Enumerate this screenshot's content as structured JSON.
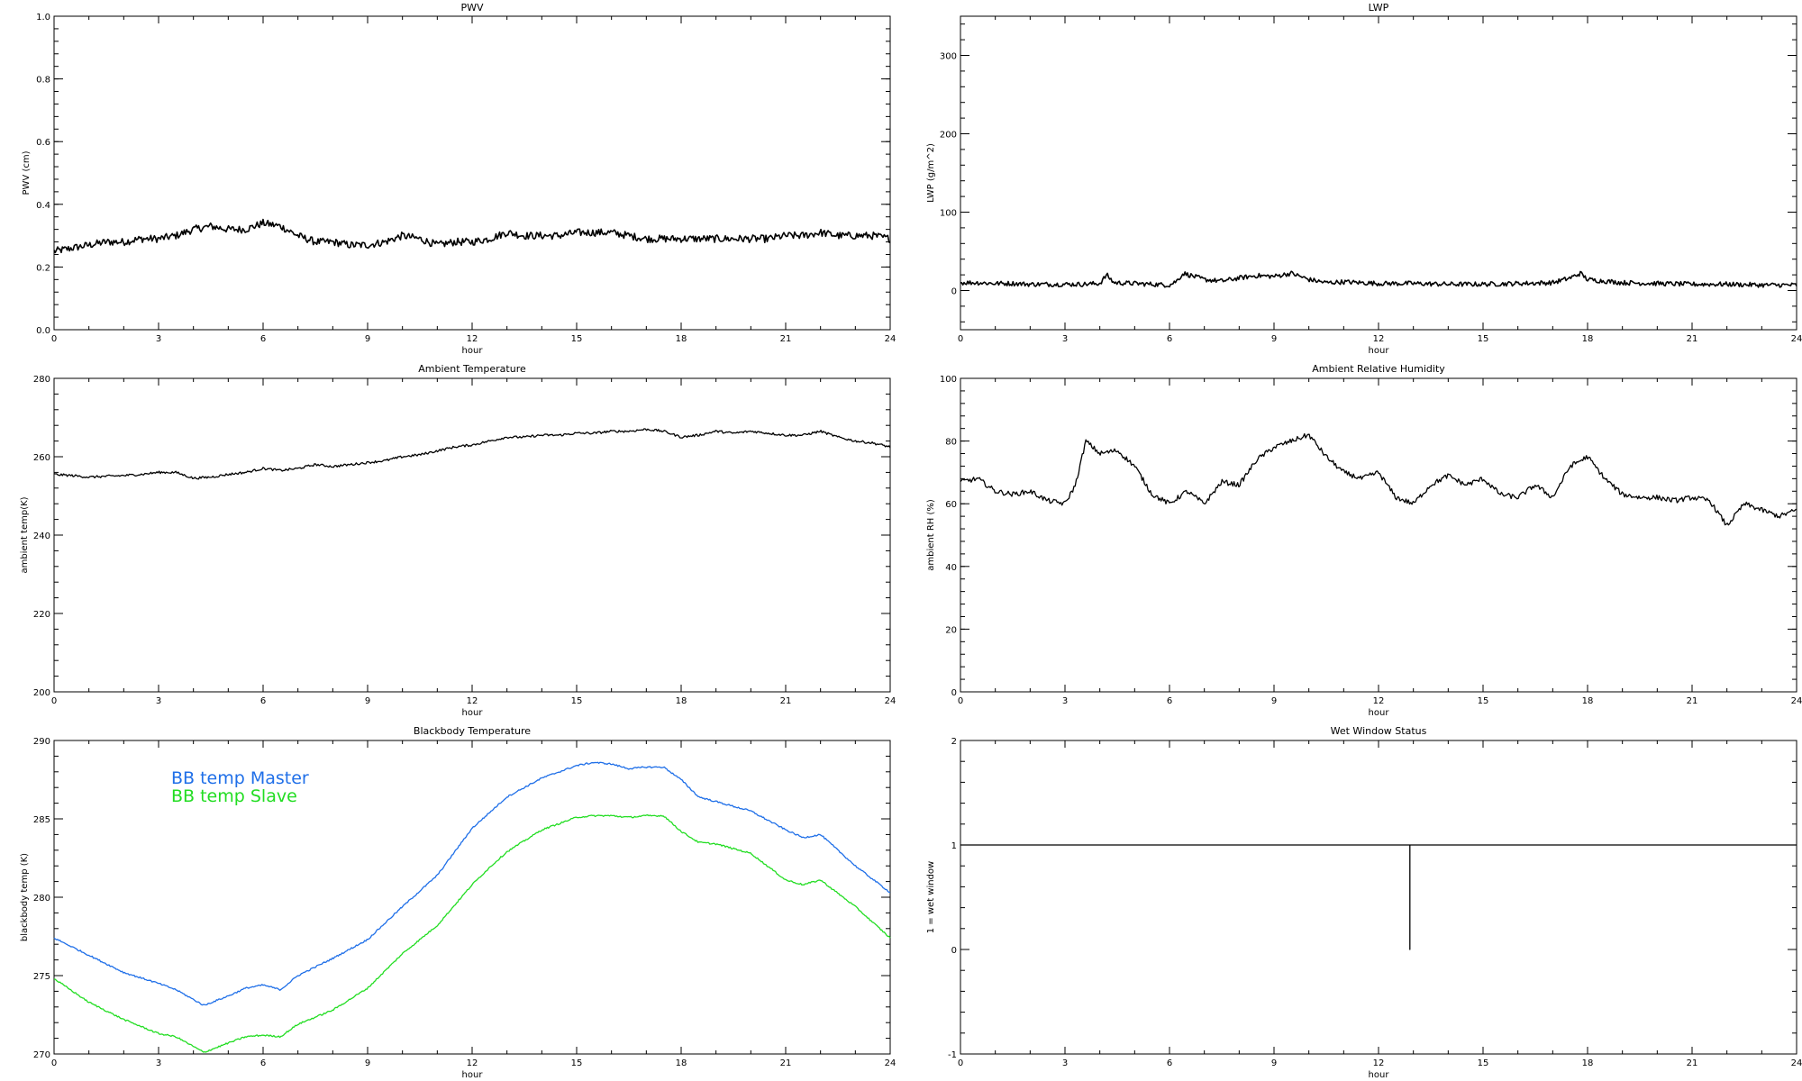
{
  "chart_data": [
    {
      "id": "pwv",
      "type": "line",
      "title": "PWV",
      "xlabel": "hour",
      "ylabel": "PWV (cm)",
      "xlim": [
        0,
        24
      ],
      "ylim": [
        0,
        1.0
      ],
      "xticks": [
        "0",
        "3",
        "6",
        "9",
        "12",
        "15",
        "18",
        "21",
        "24"
      ],
      "yticks": [
        "0.0",
        "0.2",
        "0.4",
        "0.6",
        "0.8",
        "1.0"
      ],
      "legend": [],
      "series": [
        {
          "color": "#000000",
          "noise": 0.012,
          "x": [
            0,
            0.5,
            1,
            1.5,
            2,
            2.5,
            3,
            3.5,
            4,
            4.5,
            5,
            5.5,
            6,
            6.5,
            7,
            7.5,
            8,
            8.5,
            9,
            9.5,
            10,
            10.5,
            11,
            11.5,
            12,
            12.5,
            13,
            13.5,
            14,
            14.5,
            15,
            15.5,
            16,
            16.5,
            17,
            17.5,
            18,
            18.5,
            19,
            19.5,
            20,
            20.5,
            21,
            21.5,
            22,
            22.5,
            23,
            23.5,
            24
          ],
          "y": [
            0.25,
            0.26,
            0.27,
            0.28,
            0.28,
            0.29,
            0.29,
            0.3,
            0.32,
            0.33,
            0.32,
            0.32,
            0.34,
            0.33,
            0.3,
            0.28,
            0.28,
            0.27,
            0.27,
            0.28,
            0.3,
            0.29,
            0.27,
            0.28,
            0.28,
            0.29,
            0.31,
            0.3,
            0.3,
            0.3,
            0.31,
            0.31,
            0.31,
            0.3,
            0.29,
            0.29,
            0.29,
            0.29,
            0.29,
            0.29,
            0.29,
            0.29,
            0.3,
            0.3,
            0.31,
            0.3,
            0.3,
            0.3,
            0.29
          ]
        }
      ]
    },
    {
      "id": "lwp",
      "type": "line",
      "title": "LWP",
      "xlabel": "hour",
      "ylabel": "LWP (g/m^2)",
      "xlim": [
        0,
        24
      ],
      "ylim": [
        -50,
        350
      ],
      "xticks": [
        "0",
        "3",
        "6",
        "9",
        "12",
        "15",
        "18",
        "21",
        "24"
      ],
      "yticks": [
        "0",
        "100",
        "200",
        "300"
      ],
      "yticks_values": [
        0,
        100,
        200,
        300
      ],
      "legend": [],
      "series": [
        {
          "color": "#000000",
          "noise": 3,
          "x": [
            0,
            0.5,
            1,
            1.5,
            2,
            2.5,
            3,
            3.5,
            4,
            4.2,
            4.4,
            5,
            5.5,
            6,
            6.2,
            6.4,
            7,
            7.5,
            8,
            8.5,
            9,
            9.5,
            10,
            10.5,
            11,
            12,
            13,
            14,
            15,
            16,
            17,
            17.5,
            17.8,
            18,
            18.5,
            19,
            20,
            21,
            22,
            23,
            24
          ],
          "y": [
            10,
            10,
            9,
            9,
            8,
            8,
            8,
            8,
            9,
            20,
            10,
            9,
            8,
            7,
            12,
            22,
            14,
            12,
            16,
            19,
            18,
            22,
            14,
            10,
            11,
            9,
            9,
            8,
            8,
            9,
            10,
            16,
            22,
            14,
            12,
            10,
            9,
            8,
            8,
            7,
            7
          ]
        }
      ]
    },
    {
      "id": "ambient-temp",
      "type": "line",
      "title": "Ambient Temperature",
      "xlabel": "hour",
      "ylabel": "ambient temp(K)",
      "xlim": [
        0,
        24
      ],
      "ylim": [
        200,
        280
      ],
      "xticks": [
        "0",
        "3",
        "6",
        "9",
        "12",
        "15",
        "18",
        "21",
        "24"
      ],
      "yticks": [
        "200",
        "220",
        "240",
        "260",
        "280"
      ],
      "legend": [],
      "series": [
        {
          "color": "#000000",
          "noise": 0.3,
          "x": [
            0,
            0.5,
            1,
            1.5,
            2,
            2.5,
            3,
            3.5,
            4,
            4.5,
            5,
            5.5,
            6,
            6.5,
            7,
            7.5,
            8,
            8.5,
            9,
            9.5,
            10,
            10.5,
            11,
            11.5,
            12,
            12.5,
            13,
            13.5,
            14,
            14.5,
            15,
            15.5,
            16,
            16.5,
            17,
            17.5,
            18,
            18.5,
            19,
            19.5,
            20,
            20.5,
            21,
            21.5,
            22,
            22.5,
            23,
            23.5,
            24
          ],
          "y": [
            255.5,
            255.2,
            254.8,
            255,
            255.2,
            255.5,
            256,
            256,
            254.5,
            254.8,
            255.5,
            256,
            257,
            256.5,
            257,
            258,
            257.5,
            258,
            258.5,
            259,
            260,
            260.5,
            261.5,
            262.5,
            263,
            264,
            265,
            265,
            265.5,
            265.5,
            266,
            266,
            266.5,
            266.5,
            267,
            266.5,
            265,
            265.5,
            266.5,
            266,
            266.5,
            266,
            265.5,
            265.5,
            266.5,
            265,
            264,
            263.5,
            262.5
          ]
        }
      ]
    },
    {
      "id": "ambient-rh",
      "type": "line",
      "title": "Ambient Relative Humidity",
      "xlabel": "hour",
      "ylabel": "ambient RH (%)",
      "xlim": [
        0,
        24
      ],
      "ylim": [
        0,
        100
      ],
      "xticks": [
        "0",
        "3",
        "6",
        "9",
        "12",
        "15",
        "18",
        "21",
        "24"
      ],
      "yticks": [
        "0",
        "20",
        "40",
        "60",
        "80",
        "100"
      ],
      "legend": [],
      "series": [
        {
          "color": "#000000",
          "noise": 0.8,
          "x": [
            0,
            0.5,
            1,
            1.5,
            2,
            2.5,
            3,
            3.3,
            3.6,
            4,
            4.5,
            5,
            5.5,
            6,
            6.5,
            7,
            7.5,
            8,
            8.5,
            9,
            9.5,
            10,
            10.5,
            11,
            11.5,
            12,
            12.5,
            13,
            13.5,
            14,
            14.5,
            15,
            15.5,
            16,
            16.5,
            17,
            17.5,
            18,
            18.5,
            19,
            19.5,
            20,
            20.5,
            21,
            21.5,
            22,
            22.5,
            23,
            23.5,
            24
          ],
          "y": [
            67,
            68,
            64,
            63,
            64,
            61,
            60,
            66,
            80,
            76,
            77,
            72,
            63,
            60,
            64,
            60,
            67,
            66,
            74,
            78,
            80,
            82,
            75,
            70,
            68,
            70,
            62,
            60,
            66,
            69,
            66,
            68,
            63,
            62,
            66,
            62,
            72,
            75,
            68,
            63,
            62,
            62,
            61,
            62,
            61,
            53,
            60,
            58,
            56,
            58
          ]
        }
      ]
    },
    {
      "id": "bb-temp",
      "type": "line",
      "title": "Blackbody Temperature",
      "xlabel": "hour",
      "ylabel": "blackbody temp (K)",
      "xlim": [
        0,
        24
      ],
      "ylim": [
        270,
        290
      ],
      "xticks": [
        "0",
        "3",
        "6",
        "9",
        "12",
        "15",
        "18",
        "21",
        "24"
      ],
      "yticks": [
        "270",
        "275",
        "280",
        "285",
        "290"
      ],
      "legend": [
        "BB temp Master",
        "BB temp Slave"
      ],
      "series": [
        {
          "name": "BB temp Master",
          "color": "#1f6fe8",
          "noise": 0.05,
          "x": [
            0,
            1,
            2,
            3,
            3.5,
            4.3,
            5,
            5.5,
            6,
            6.5,
            7,
            8,
            9,
            10,
            11,
            12,
            12.5,
            13,
            14,
            15,
            15.5,
            16,
            16.5,
            17,
            17.5,
            18,
            18.5,
            19,
            20,
            21,
            21.5,
            22,
            23,
            24
          ],
          "y": [
            277.4,
            276.3,
            275.2,
            274.5,
            274.1,
            273.1,
            273.7,
            274.2,
            274.4,
            274.1,
            275,
            276.1,
            277.3,
            279.4,
            281.4,
            284.4,
            285.4,
            286.4,
            287.6,
            288.4,
            288.6,
            288.5,
            288.2,
            288.3,
            288.3,
            287.5,
            286.4,
            286.1,
            285.5,
            284.3,
            283.8,
            284,
            282,
            280.3
          ]
        },
        {
          "name": "BB temp Slave",
          "color": "#22dd22",
          "noise": 0.05,
          "x": [
            0,
            1,
            2,
            3,
            3.5,
            4.3,
            5,
            5.5,
            6,
            6.5,
            7,
            8,
            9,
            10,
            11,
            12,
            12.5,
            13,
            14,
            15,
            15.5,
            16,
            16.5,
            17,
            17.5,
            18,
            18.5,
            19,
            20,
            21,
            21.5,
            22,
            23,
            24
          ],
          "y": [
            274.8,
            273.3,
            272.2,
            271.3,
            271.1,
            270.1,
            270.7,
            271.1,
            271.2,
            271.1,
            271.9,
            272.8,
            274.2,
            276.4,
            278.2,
            280.8,
            281.9,
            282.9,
            284.3,
            285.1,
            285.2,
            285.2,
            285.1,
            285.2,
            285.2,
            284.2,
            283.5,
            283.4,
            282.8,
            281.1,
            280.8,
            281.1,
            279.4,
            277.4
          ]
        }
      ]
    },
    {
      "id": "wet-window",
      "type": "line",
      "title": "Wet Window Status",
      "xlabel": "hour",
      "ylabel": "1 = wet window",
      "xlim": [
        0,
        24
      ],
      "ylim": [
        -1,
        2
      ],
      "xticks": [
        "0",
        "3",
        "6",
        "9",
        "12",
        "15",
        "18",
        "21",
        "24"
      ],
      "yticks": [
        "-1",
        "0",
        "1",
        "2"
      ],
      "legend": [],
      "series": [
        {
          "color": "#000000",
          "noise": 0,
          "x": [
            0,
            12.9,
            12.9,
            12.9,
            24
          ],
          "y": [
            1,
            1,
            0,
            1,
            1
          ]
        }
      ]
    }
  ]
}
